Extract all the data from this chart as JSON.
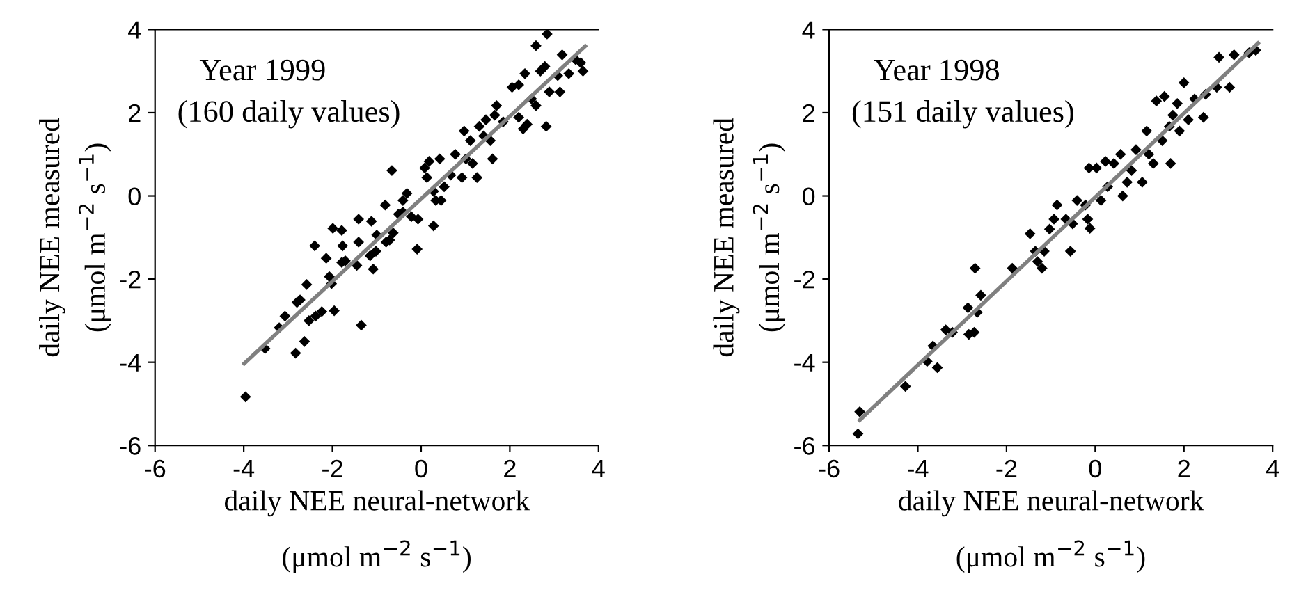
{
  "chart_data": [
    {
      "type": "scatter",
      "xlabel": "daily NEE neural-network\n(μmol m$^{−2}$ s$^{−1}$)",
      "ylabel": "daily NEE measured\n(μmol m$^{−2}$ s$^{−1}$)",
      "annotations": [
        "Year 1999",
        "(160 daily values)"
      ],
      "xlim": [
        -6,
        4
      ],
      "ylim": [
        -6,
        4
      ],
      "xticks": [
        -6,
        -4,
        -2,
        0,
        2,
        4
      ],
      "yticks": [
        -6,
        -4,
        -2,
        0,
        2,
        4
      ],
      "grid": false,
      "legend": false,
      "series": [
        {
          "marker": "diamond",
          "color": "#000000",
          "x": [
            -3.96,
            -3.52,
            -3.2,
            -3.07,
            -2.83,
            -2.8,
            -2.73,
            -2.63,
            -2.58,
            -2.53,
            -2.38,
            -2.24,
            -1.96,
            -2.4,
            -2.14,
            -2.07,
            -2.02,
            -1.99,
            -1.79,
            -1.77,
            -1.79,
            -1.71,
            -1.45,
            -1.41,
            -1.41,
            -1.35,
            -1.12,
            -1.15,
            -1.08,
            -1.02,
            -1.0,
            -0.81,
            -0.79,
            -0.63,
            -0.71,
            -0.66,
            -0.51,
            -0.41,
            -0.32,
            -0.41,
            -0.22,
            -0.07,
            -0.09,
            0.08,
            0.13,
            0.18,
            0.28,
            0.33,
            0.28,
            0.42,
            0.45,
            0.52,
            0.67,
            0.77,
            0.92,
            0.97,
            1.01,
            1.11,
            1.16,
            1.26,
            1.31,
            1.41,
            1.46,
            1.56,
            1.61,
            1.66,
            1.7,
            1.85,
            2.05,
            2.2,
            2.3,
            2.2,
            2.34,
            2.39,
            2.49,
            2.59,
            2.59,
            2.69,
            2.79,
            2.84,
            2.82,
            2.89,
            3.13,
            3.08,
            3.18,
            3.33,
            3.48,
            3.6,
            3.65
          ],
          "values": [
            -4.83,
            -3.67,
            -3.17,
            -2.89,
            -3.78,
            -2.56,
            -2.5,
            -3.5,
            -2.13,
            -3.0,
            -2.89,
            -2.78,
            -2.76,
            -1.2,
            -1.5,
            -1.94,
            -2.11,
            -0.78,
            -0.83,
            -1.2,
            -1.6,
            -1.56,
            -1.67,
            -0.56,
            -1.11,
            -3.11,
            -0.61,
            -1.44,
            -1.76,
            -1.33,
            -0.94,
            -0.22,
            -1.11,
            -0.89,
            -1.06,
            0.61,
            -0.44,
            -0.11,
            0.06,
            -0.39,
            -0.5,
            -0.56,
            -1.28,
            0.67,
            0.44,
            0.83,
            0.11,
            -0.11,
            -0.72,
            0.89,
            -0.11,
            0.22,
            0.5,
            1.0,
            0.44,
            1.56,
            0.89,
            1.33,
            0.78,
            0.44,
            1.67,
            1.44,
            1.83,
            1.33,
            0.89,
            1.94,
            2.17,
            1.78,
            2.61,
            1.89,
            1.61,
            2.67,
            2.94,
            1.72,
            2.33,
            2.17,
            3.61,
            3.0,
            3.11,
            3.89,
            1.67,
            2.5,
            2.5,
            2.89,
            3.39,
            2.94,
            3.28,
            3.2,
            3.0
          ]
        },
        {
          "type": "line",
          "color": "#808080",
          "x": [
            -3.99,
            3.7
          ],
          "values": [
            -4.03,
            3.6
          ]
        }
      ]
    },
    {
      "type": "scatter",
      "xlabel": "daily NEE neural-network\n(μmol m$^{−2}$ s$^{−1}$)",
      "ylabel": "daily NEE measured\n(μmol m$^{−2}$ s$^{−1}$)",
      "annotations": [
        "Year 1998",
        "(151 daily values)"
      ],
      "xlim": [
        -6,
        4
      ],
      "ylim": [
        -6,
        4
      ],
      "xticks": [
        -6,
        -4,
        -2,
        0,
        2,
        4
      ],
      "yticks": [
        -6,
        -4,
        -2,
        0,
        2,
        4
      ],
      "grid": false,
      "legend": false,
      "series": [
        {
          "marker": "diamond",
          "color": "#000000",
          "x": [
            -5.35,
            -5.31,
            -4.28,
            -3.79,
            -3.66,
            -3.56,
            -3.37,
            -3.22,
            -2.87,
            -2.85,
            -2.73,
            -2.71,
            -2.66,
            -2.58,
            -1.87,
            -1.47,
            -1.35,
            -1.3,
            -1.2,
            -1.15,
            -1.03,
            -0.93,
            -0.86,
            -0.66,
            -0.56,
            -0.51,
            -0.41,
            -0.22,
            -0.17,
            -0.12,
            -0.14,
            0.03,
            0.13,
            0.23,
            0.28,
            0.42,
            0.57,
            0.62,
            0.72,
            0.82,
            0.92,
            1.06,
            1.16,
            1.21,
            1.31,
            1.38,
            1.51,
            1.56,
            1.67,
            1.7,
            1.75,
            1.85,
            1.9,
            2.0,
            2.1,
            2.24,
            2.44,
            2.49,
            2.74,
            2.79,
            3.03,
            3.13,
            3.47,
            3.62
          ],
          "values": [
            -5.72,
            -5.19,
            -4.58,
            -3.98,
            -3.61,
            -4.13,
            -3.22,
            -3.28,
            -2.69,
            -3.33,
            -3.28,
            -1.74,
            -2.8,
            -2.39,
            -1.74,
            -0.91,
            -1.33,
            -1.58,
            -1.74,
            -1.33,
            -0.8,
            -0.56,
            -0.22,
            -0.56,
            -1.33,
            -0.67,
            -0.11,
            -0.22,
            -0.56,
            -0.78,
            0.67,
            0.67,
            -0.11,
            0.83,
            0.22,
            0.78,
            1.0,
            0.0,
            0.33,
            0.61,
            1.11,
            0.33,
            1.56,
            1.0,
            0.78,
            2.28,
            1.33,
            2.39,
            1.67,
            0.78,
            1.94,
            2.22,
            1.56,
            2.72,
            1.83,
            2.33,
            1.89,
            2.44,
            2.61,
            3.33,
            2.61,
            3.39,
            3.44,
            3.5
          ]
        },
        {
          "type": "line",
          "color": "#808080",
          "x": [
            -5.31,
            3.67
          ],
          "values": [
            -5.39,
            3.67
          ]
        }
      ]
    }
  ]
}
